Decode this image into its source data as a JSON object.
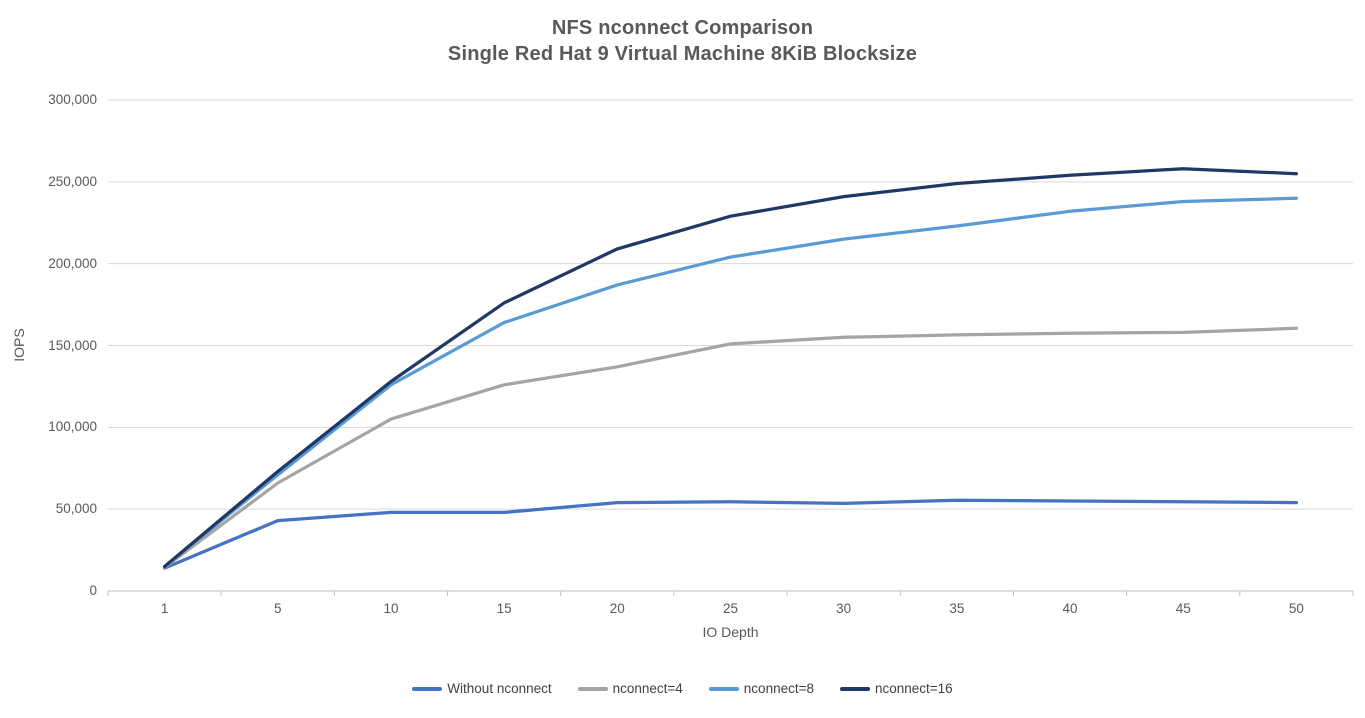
{
  "chart_data": {
    "type": "line",
    "title": "NFS nconnect Comparison",
    "subtitle": "Single Red Hat 9 Virtual Machine 8KiB Blocksize",
    "xlabel": "IO Depth",
    "ylabel": "IOPS",
    "x": [
      1,
      5,
      10,
      15,
      20,
      25,
      30,
      35,
      40,
      45,
      50
    ],
    "ylim": [
      0,
      300000
    ],
    "ytick_interval": 50000,
    "grid": true,
    "legend_position": "bottom",
    "y_ticks": [
      {
        "value": 0,
        "label": "0"
      },
      {
        "value": 50000,
        "label": "50,000"
      },
      {
        "value": 100000,
        "label": "100,000"
      },
      {
        "value": 150000,
        "label": "150,000"
      },
      {
        "value": 200000,
        "label": "200,000"
      },
      {
        "value": 250000,
        "label": "250,000"
      },
      {
        "value": 300000,
        "label": "300,000"
      }
    ],
    "series": [
      {
        "name": "Without nconnect",
        "color": "#4472C4",
        "values": [
          14000,
          43000,
          48000,
          48000,
          54000,
          54500,
          53500,
          55500,
          55000,
          54500,
          54000
        ]
      },
      {
        "name": "nconnect=4",
        "color": "#A5A5A5",
        "values": [
          14500,
          66000,
          105000,
          126000,
          137000,
          151000,
          155000,
          156500,
          157500,
          158000,
          160500
        ]
      },
      {
        "name": "nconnect=8",
        "color": "#5B9BD5",
        "values": [
          15000,
          71000,
          126000,
          164000,
          187000,
          204000,
          215000,
          223000,
          232000,
          238000,
          240000
        ]
      },
      {
        "name": "nconnect=16",
        "color": "#1F3864",
        "values": [
          15000,
          73000,
          128000,
          176000,
          209000,
          229000,
          241000,
          249000,
          254000,
          258000,
          255000
        ]
      }
    ]
  },
  "colors": {
    "title_text": "#595959",
    "tick_text": "#595959",
    "legend_text": "#404040",
    "gridline": "#D9D9D9",
    "axis_line": "#BFBFBF"
  }
}
